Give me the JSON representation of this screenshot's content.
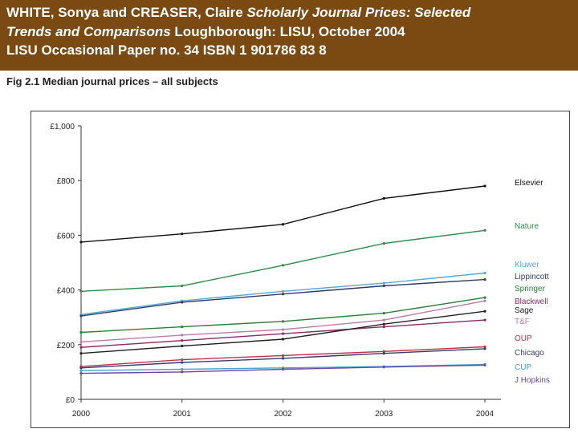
{
  "header": {
    "line1_authors": "WHITE, Sonya and CREASER, Claire",
    "line1_title": "Scholarly Journal Prices: Selected",
    "line2_title": "Trends and Comparisons",
    "line2_rest": "Loughborough: LISU, October 2004",
    "line3": "LISU Occasional Paper no. 34 ISBN 1 901786 83 8"
  },
  "colors": {
    "header_bg": "#7b4a12",
    "header_text": "#ffffff"
  },
  "chart_data": {
    "type": "line",
    "title": "Fig 2.1 Median journal prices – all subjects",
    "xlabel": "",
    "ylabel": "",
    "x": [
      2000,
      2001,
      2002,
      2003,
      2004
    ],
    "x_tick_labels": [
      "2000",
      "2001",
      "2002",
      "2003",
      "2004"
    ],
    "ylim": [
      0,
      1000
    ],
    "y_ticks": [
      0,
      200,
      400,
      600,
      800,
      1000
    ],
    "y_tick_labels": [
      "£0",
      "£200",
      "£400",
      "£600",
      "£800",
      "£1,000"
    ],
    "grid": false,
    "legend": "right end labels",
    "series": [
      {
        "name": "Elsevier",
        "color": "#111111",
        "values": [
          575,
          605,
          640,
          735,
          780
        ]
      },
      {
        "name": "Nature",
        "color": "#2e8b4a",
        "values": [
          395,
          415,
          490,
          570,
          618
        ]
      },
      {
        "name": "Kluwer",
        "color": "#5ba7d6",
        "values": [
          310,
          360,
          395,
          425,
          462
        ]
      },
      {
        "name": "Lippincott",
        "color": "#2c3e66",
        "values": [
          305,
          355,
          385,
          415,
          438
        ]
      },
      {
        "name": "Springer",
        "color": "#2e7d3a",
        "values": [
          245,
          265,
          285,
          315,
          372
        ]
      },
      {
        "name": "Blackwell",
        "color": "#8a2a6a",
        "values": [
          190,
          215,
          240,
          265,
          290
        ]
      },
      {
        "name": "Sage",
        "color": "#222222",
        "values": [
          168,
          195,
          220,
          275,
          322
        ]
      },
      {
        "name": "T&F",
        "color": "#c07aa8",
        "values": [
          210,
          235,
          255,
          290,
          360
        ]
      },
      {
        "name": "OUP",
        "color": "#c0304a",
        "values": [
          120,
          145,
          160,
          175,
          192
        ]
      },
      {
        "name": "Chicago",
        "color": "#3a3a6a",
        "values": [
          115,
          135,
          150,
          168,
          185
        ]
      },
      {
        "name": "CUP",
        "color": "#4aa3c8",
        "values": [
          105,
          110,
          115,
          120,
          128
        ]
      },
      {
        "name": "J Hopkins",
        "color": "#6a4aa0",
        "values": [
          95,
          100,
          110,
          118,
          125
        ]
      }
    ]
  }
}
